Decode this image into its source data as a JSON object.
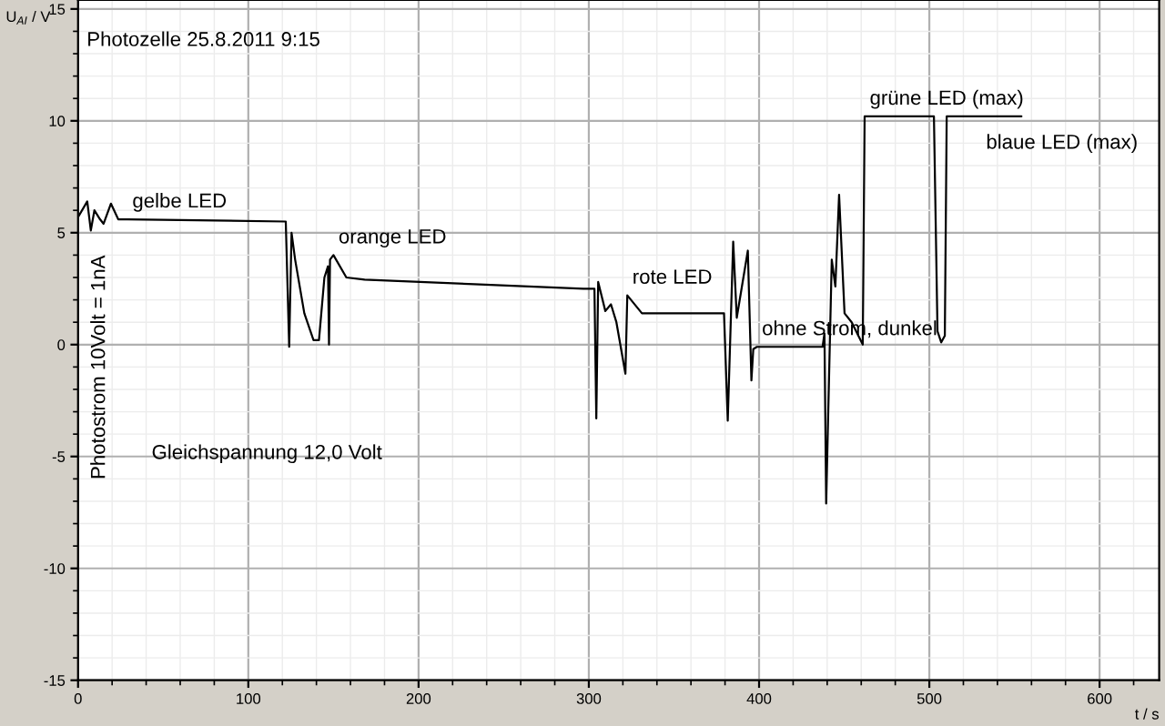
{
  "chart_data": {
    "type": "line",
    "title": "Photozelle 25.8.2011 9:15",
    "xlabel": "t / s",
    "ylabel": "U$_{AI}$ / V",
    "annotations": [
      "Photostrom 10Volt = 1nA",
      "Gleichspannung 12,0 Volt",
      {
        "text": "gelbe LED",
        "x": 28.9,
        "y": 5.6
      },
      {
        "text": "orange LED",
        "x": 150,
        "y": 4.0
      },
      {
        "text": "rote LED",
        "x": 322.6,
        "y": 2.2
      },
      {
        "text": "ohne Strom, dunkel",
        "x": 398.7,
        "y": -0.1
      },
      {
        "text": "grüne LED (max)",
        "x": 462,
        "y": 10.2
      },
      {
        "text": "blaue LED (max)",
        "x": 554.1,
        "y": 10.2
      }
    ],
    "series": [
      {
        "color": "#000000",
        "x": [
          0,
          5.4,
          7.5,
          9.6,
          12.9,
          15,
          19.3,
          23.6,
          28.9,
          122,
          124,
          125.4,
          127.5,
          132.9,
          138.3,
          141.5,
          144.7,
          146.8,
          147.4,
          148,
          150,
          157.6,
          168.3,
          232.6,
          296.9,
          303.3,
          304.4,
          305.5,
          309.7,
          313,
          316.2,
          321.5,
          322.6,
          331.2,
          379.4,
          381.6,
          384.8,
          386.9,
          393.4,
          395.5,
          396.6,
          398.7,
          437.3,
          438.4,
          439.4,
          441.6,
          442.7,
          444.8,
          447,
          450.2,
          454.4,
          460.9,
          462,
          502.7,
          504.8,
          507,
          509.1,
          510.2,
          554.1
        ],
        "values": [
          5.7,
          6.4,
          5.1,
          6.0,
          5.6,
          5.4,
          6.3,
          5.6,
          5.6,
          5.5,
          -0.1,
          5.0,
          3.8,
          1.4,
          0.2,
          0.2,
          3.0,
          3.5,
          0,
          3.8,
          4.0,
          3.0,
          2.9,
          2.7,
          2.5,
          2.5,
          -3.3,
          2.8,
          1.5,
          1.8,
          1.0,
          -1.3,
          2.2,
          1.4,
          1.4,
          -3.4,
          4.6,
          1.2,
          4.2,
          -1.6,
          -0.2,
          -0.1,
          -0.1,
          0.5,
          -7.1,
          0.2,
          3.8,
          2.6,
          6.7,
          1.4,
          1.0,
          0.0,
          10.2,
          10.2,
          0.6,
          0.1,
          0.4,
          10.2,
          10.2
        ]
      }
    ],
    "xlim": [
      0,
      635
    ],
    "xticks": [
      0,
      100,
      200,
      300,
      400,
      500,
      600
    ],
    "ylim": [
      -15,
      15.4
    ],
    "yticks": [
      -15,
      -10,
      -5,
      0,
      5,
      10,
      15
    ],
    "grid": true,
    "legend": false,
    "marker": "none",
    "line_style": "solid"
  }
}
